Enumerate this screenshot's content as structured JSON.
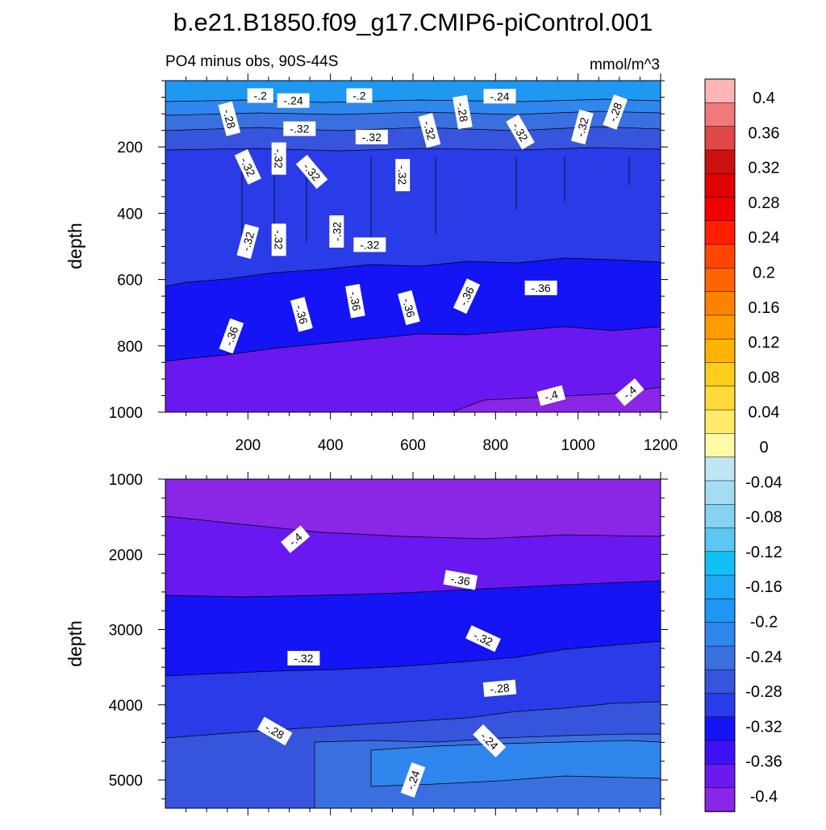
{
  "title": "b.e21.B1850.f09_g17.CMIP6-piControl.001",
  "chart_data": {
    "type": "contour",
    "units": "mmol/m^3",
    "subtitle_left": "PO4 minus obs, 90S-44S",
    "subtitle_right": "mmol/m^3",
    "colorbar": {
      "levels": [
        -0.4,
        -0.36,
        -0.32,
        -0.28,
        -0.24,
        -0.2,
        -0.16,
        -0.12,
        -0.08,
        -0.04,
        0,
        0.04,
        0.08,
        0.12,
        0.16,
        0.2,
        0.24,
        0.28,
        0.32,
        0.36,
        0.4
      ],
      "tick_labels": [
        "-0.4",
        "-0.36",
        "-0.32",
        "-0.28",
        "-0.24",
        "-0.2",
        "-0.16",
        "-0.12",
        "-0.08",
        "-0.04",
        "0",
        "0.04",
        "0.08",
        "0.12",
        "0.16",
        "0.2",
        "0.24",
        "0.28",
        "0.32",
        "0.36",
        "0.4"
      ],
      "colors": [
        "#8a26e6",
        "#6a18f0",
        "#3d12f2",
        "#1414f5",
        "#2a3be8",
        "#3755dc",
        "#3a6fe0",
        "#2f86ec",
        "#1e98f2",
        "#20a8f6",
        "#10bff4",
        "#5cc7f0",
        "#86d2f2",
        "#a3dcf3",
        "#c0e5f5",
        "#fff9a8",
        "#ffea6a",
        "#ffda3a",
        "#ffcd1a",
        "#ffb300",
        "#ff9d00",
        "#ff8200",
        "#ff6400",
        "#ff4500",
        "#ff1f00",
        "#f20000",
        "#e00000",
        "#cc1010",
        "#e24848",
        "#f07a7a",
        "#ffb5b5"
      ]
    },
    "panels": [
      {
        "name": "upper",
        "xlabel": "",
        "ylabel": "depth",
        "xlim": [
          0,
          1200
        ],
        "ylim": [
          1000,
          0
        ],
        "xticks": [
          200,
          400,
          600,
          800,
          1000,
          1200
        ],
        "yticks": [
          200,
          400,
          600,
          800,
          1000
        ],
        "contour_labels": [
          {
            "text": "-.2",
            "x": 230,
            "y": 45,
            "angle": 0
          },
          {
            "text": "-.24",
            "x": 310,
            "y": 60,
            "angle": 0
          },
          {
            "text": "-.2",
            "x": 470,
            "y": 45,
            "angle": 0
          },
          {
            "text": "-.24",
            "x": 810,
            "y": 47,
            "angle": 0
          },
          {
            "text": "-.28",
            "x": 155,
            "y": 115,
            "angle": 75
          },
          {
            "text": "-.28",
            "x": 720,
            "y": 95,
            "angle": 80
          },
          {
            "text": "-.28",
            "x": 1090,
            "y": 95,
            "angle": -70
          },
          {
            "text": "-.32",
            "x": 325,
            "y": 145,
            "angle": 0
          },
          {
            "text": "-.32",
            "x": 500,
            "y": 170,
            "angle": 0
          },
          {
            "text": "-.32",
            "x": 640,
            "y": 150,
            "angle": 75
          },
          {
            "text": "-.32",
            "x": 860,
            "y": 155,
            "angle": 60
          },
          {
            "text": "-.32",
            "x": 1010,
            "y": 140,
            "angle": -75
          },
          {
            "text": "-.32",
            "x": 200,
            "y": 260,
            "angle": 65
          },
          {
            "text": "-.32",
            "x": 275,
            "y": 235,
            "angle": 90
          },
          {
            "text": "-.32",
            "x": 355,
            "y": 275,
            "angle": 50
          },
          {
            "text": "-.32",
            "x": 575,
            "y": 285,
            "angle": 90
          },
          {
            "text": "-.32",
            "x": 415,
            "y": 455,
            "angle": -90
          },
          {
            "text": "-.32",
            "x": 200,
            "y": 485,
            "angle": -75
          },
          {
            "text": "-.32",
            "x": 275,
            "y": 480,
            "angle": 90
          },
          {
            "text": "-.32",
            "x": 495,
            "y": 495,
            "angle": 0
          },
          {
            "text": "-.36",
            "x": 460,
            "y": 665,
            "angle": 80
          },
          {
            "text": "-.36",
            "x": 590,
            "y": 685,
            "angle": 75
          },
          {
            "text": "-.36",
            "x": 730,
            "y": 650,
            "angle": -65
          },
          {
            "text": "-.36",
            "x": 910,
            "y": 625,
            "angle": 0
          },
          {
            "text": "-.36",
            "x": 330,
            "y": 705,
            "angle": 75
          },
          {
            "text": "-.36",
            "x": 160,
            "y": 770,
            "angle": -70
          },
          {
            "text": "-.4",
            "x": 935,
            "y": 950,
            "angle": -15
          },
          {
            "text": "-.4",
            "x": 1125,
            "y": 940,
            "angle": -40
          }
        ]
      },
      {
        "name": "lower",
        "xlabel": "",
        "ylabel": "depth",
        "xlim": [
          0,
          1200
        ],
        "ylim": [
          5375,
          1000
        ],
        "xticks": [
          200,
          400,
          600,
          800,
          1000,
          1200
        ],
        "yticks": [
          1000,
          2000,
          3000,
          4000,
          5000
        ],
        "contour_labels": [
          {
            "text": "-.4",
            "x": 315,
            "y": 1800,
            "angle": -40
          },
          {
            "text": "-.36",
            "x": 715,
            "y": 2340,
            "angle": 10
          },
          {
            "text": "-.32",
            "x": 770,
            "y": 3120,
            "angle": 25
          },
          {
            "text": "-.32",
            "x": 335,
            "y": 3380,
            "angle": 0
          },
          {
            "text": "-.28",
            "x": 810,
            "y": 3780,
            "angle": -5
          },
          {
            "text": "-.28",
            "x": 265,
            "y": 4350,
            "angle": 30
          },
          {
            "text": "-.24",
            "x": 785,
            "y": 4480,
            "angle": 45
          },
          {
            "text": "-.24",
            "x": 600,
            "y": 5000,
            "angle": -70
          }
        ]
      }
    ]
  }
}
